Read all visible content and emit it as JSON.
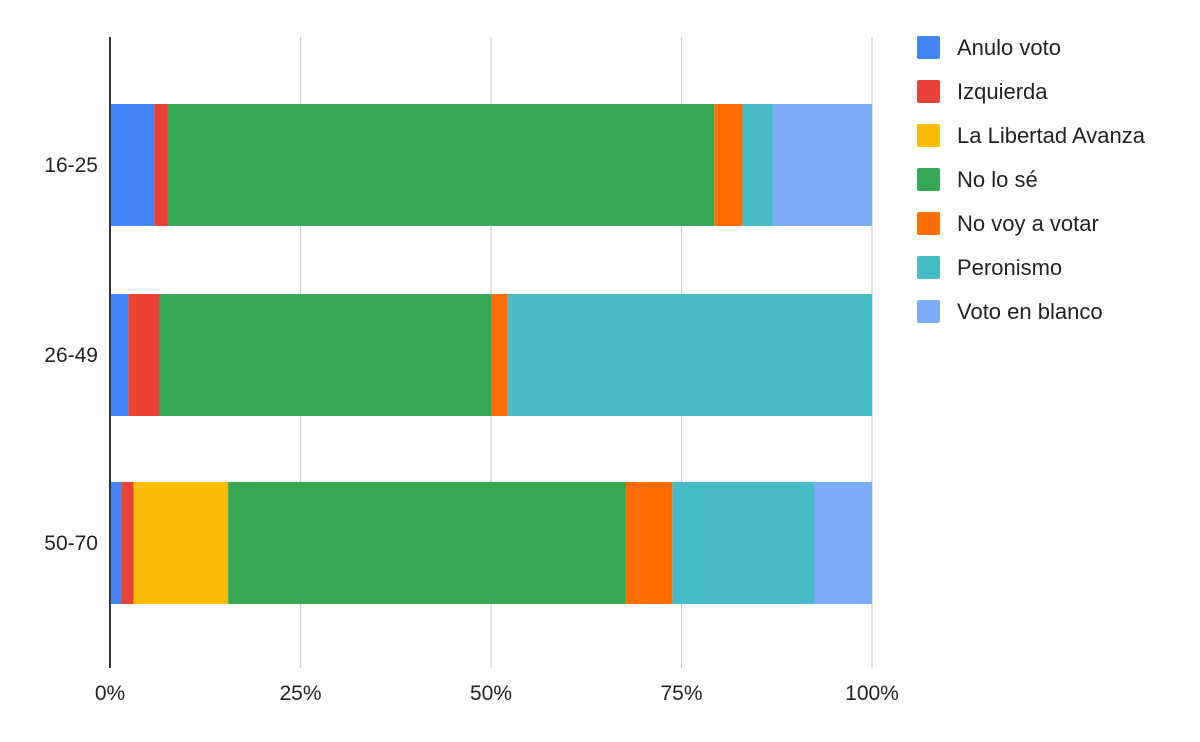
{
  "chart_data": {
    "type": "bar",
    "orientation": "horizontal",
    "stacked": "percent",
    "categories": [
      "16-25",
      "26-49",
      "50-70"
    ],
    "series": [
      {
        "name": "Anulo voto",
        "color": "#4285F4",
        "values": [
          5.8,
          2.4,
          1.5
        ]
      },
      {
        "name": "Izquierda",
        "color": "#EA4335",
        "values": [
          1.8,
          4.1,
          1.6
        ]
      },
      {
        "name": "La Libertad Avanza",
        "color": "#FBBC04",
        "values": [
          0,
          0,
          12.4
        ]
      },
      {
        "name": "No lo sé",
        "color": "#34A853",
        "values": [
          71.7,
          43.6,
          52.2
        ]
      },
      {
        "name": "No voy a votar",
        "color": "#FF6D01",
        "values": [
          3.7,
          2.1,
          6.1
        ]
      },
      {
        "name": "Peronismo",
        "color": "#46BDC6",
        "values": [
          4.0,
          47.8,
          18.6
        ]
      },
      {
        "name": "Voto en blanco",
        "color": "#7BAAF7",
        "values": [
          13.0,
          0,
          7.6
        ]
      }
    ],
    "x_ticks": [
      "0%",
      "25%",
      "50%",
      "75%",
      "100%"
    ],
    "xlim": [
      0,
      100
    ],
    "title": "",
    "xlabel": "",
    "ylabel": "",
    "grid": true,
    "legend_position": "right"
  }
}
